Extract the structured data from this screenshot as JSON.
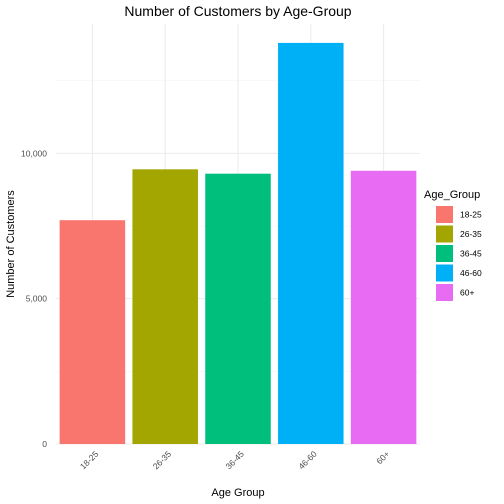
{
  "chart_data": {
    "type": "bar",
    "title": "Number of Customers by Age-Group",
    "xlabel": "Age Group",
    "ylabel": "Number of Customers",
    "categories": [
      "18-25",
      "26-35",
      "36-45",
      "46-60",
      "60+"
    ],
    "values": [
      7700,
      9450,
      9300,
      13800,
      9400
    ],
    "colors": [
      "#F8766D",
      "#A3A500",
      "#00BF7D",
      "#00B0F6",
      "#E76BF3"
    ],
    "ylim": [
      0,
      14450
    ],
    "yticks": [
      0,
      5000,
      10000
    ],
    "ytick_labels": [
      "0",
      "5,000",
      "10,000"
    ],
    "grid": true,
    "legend": {
      "title": "Age_Group",
      "position": "right",
      "entries": [
        "18-25",
        "26-35",
        "36-45",
        "46-60",
        "60+"
      ]
    }
  }
}
